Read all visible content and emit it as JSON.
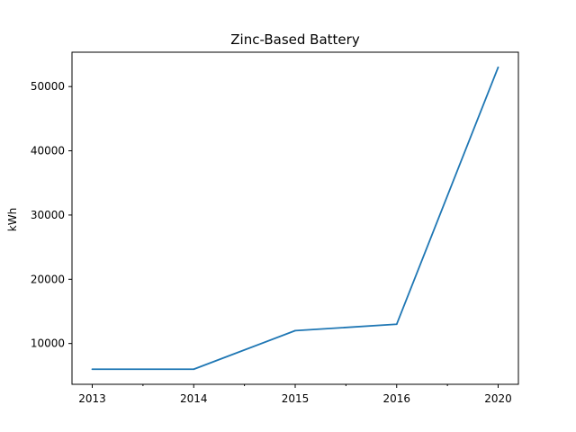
{
  "chart_data": {
    "type": "line",
    "title": "Zinc-Based Battery",
    "xlabel": "",
    "ylabel": "kWh",
    "categories": [
      "2013",
      "2014",
      "2015",
      "2016",
      "2020"
    ],
    "series": [
      {
        "values": [
          6000,
          6000,
          12000,
          13000,
          53000
        ],
        "color": "#1f77b4"
      }
    ],
    "x_tick_labels": [
      "2013",
      "2014",
      "2015",
      "2016",
      "2020"
    ],
    "minor_x_ticks": true,
    "y_ticks": [
      10000,
      20000,
      30000,
      40000,
      50000
    ],
    "y_tick_labels": [
      "10000",
      "20000",
      "30000",
      "40000",
      "50000"
    ],
    "ylim": [
      3650,
      55350
    ],
    "grid": false,
    "legend": "none"
  }
}
